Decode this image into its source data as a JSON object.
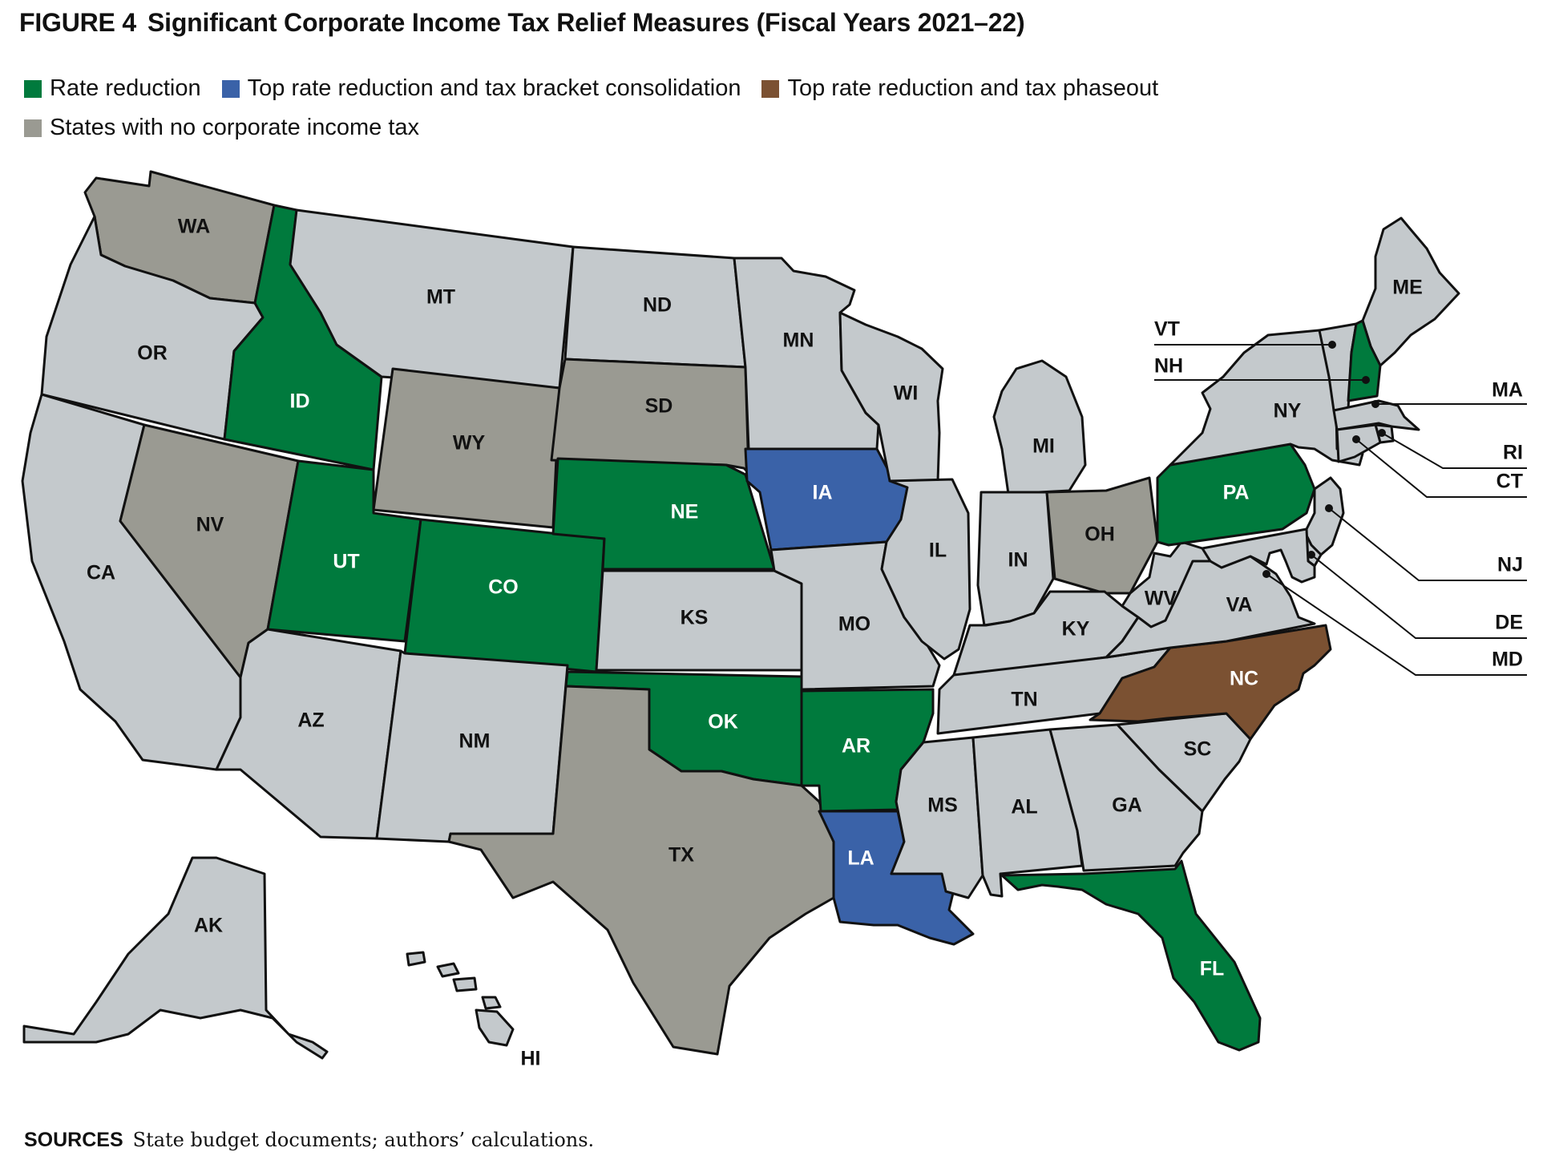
{
  "title": {
    "figure_label": "FIGURE 4",
    "text": "Significant Corporate Income Tax Relief Measures (Fiscal Years 2021–22)"
  },
  "colors": {
    "rate_reduction": "#007a3d",
    "bracket_consolidation": "#3a62a8",
    "tax_phaseout": "#7b5132",
    "no_tax": "#9a9a92",
    "other": "#c4c9cc",
    "outline": "#111111",
    "label_dark": "#111111",
    "label_light": "#ffffff"
  },
  "legend": [
    {
      "key": "rate_reduction",
      "label": "Rate reduction"
    },
    {
      "key": "bracket_consolidation",
      "label": "Top rate reduction and tax bracket consolidation"
    },
    {
      "key": "tax_phaseout",
      "label": "Top rate reduction and tax phaseout"
    },
    {
      "key": "no_tax",
      "label": "States with no corporate income tax"
    }
  ],
  "states": [
    {
      "abbr": "WA",
      "category": "no_tax"
    },
    {
      "abbr": "OR",
      "category": "other"
    },
    {
      "abbr": "CA",
      "category": "other"
    },
    {
      "abbr": "NV",
      "category": "no_tax"
    },
    {
      "abbr": "ID",
      "category": "rate_reduction"
    },
    {
      "abbr": "MT",
      "category": "other"
    },
    {
      "abbr": "WY",
      "category": "no_tax"
    },
    {
      "abbr": "UT",
      "category": "rate_reduction"
    },
    {
      "abbr": "AZ",
      "category": "other"
    },
    {
      "abbr": "CO",
      "category": "rate_reduction"
    },
    {
      "abbr": "NM",
      "category": "other"
    },
    {
      "abbr": "ND",
      "category": "other"
    },
    {
      "abbr": "SD",
      "category": "no_tax"
    },
    {
      "abbr": "NE",
      "category": "rate_reduction"
    },
    {
      "abbr": "KS",
      "category": "other"
    },
    {
      "abbr": "OK",
      "category": "rate_reduction"
    },
    {
      "abbr": "TX",
      "category": "no_tax"
    },
    {
      "abbr": "MN",
      "category": "other"
    },
    {
      "abbr": "IA",
      "category": "bracket_consolidation"
    },
    {
      "abbr": "MO",
      "category": "other"
    },
    {
      "abbr": "AR",
      "category": "rate_reduction"
    },
    {
      "abbr": "LA",
      "category": "bracket_consolidation"
    },
    {
      "abbr": "WI",
      "category": "other"
    },
    {
      "abbr": "IL",
      "category": "other"
    },
    {
      "abbr": "MI",
      "category": "other"
    },
    {
      "abbr": "IN",
      "category": "other"
    },
    {
      "abbr": "OH",
      "category": "no_tax"
    },
    {
      "abbr": "KY",
      "category": "other"
    },
    {
      "abbr": "TN",
      "category": "other"
    },
    {
      "abbr": "MS",
      "category": "other"
    },
    {
      "abbr": "AL",
      "category": "other"
    },
    {
      "abbr": "GA",
      "category": "other"
    },
    {
      "abbr": "FL",
      "category": "rate_reduction"
    },
    {
      "abbr": "SC",
      "category": "other"
    },
    {
      "abbr": "NC",
      "category": "tax_phaseout"
    },
    {
      "abbr": "VA",
      "category": "other"
    },
    {
      "abbr": "WV",
      "category": "other"
    },
    {
      "abbr": "PA",
      "category": "rate_reduction"
    },
    {
      "abbr": "NY",
      "category": "other"
    },
    {
      "abbr": "ME",
      "category": "other"
    },
    {
      "abbr": "VT",
      "category": "other"
    },
    {
      "abbr": "NH",
      "category": "rate_reduction"
    },
    {
      "abbr": "MA",
      "category": "other"
    },
    {
      "abbr": "RI",
      "category": "other"
    },
    {
      "abbr": "CT",
      "category": "other"
    },
    {
      "abbr": "NJ",
      "category": "other"
    },
    {
      "abbr": "DE",
      "category": "other"
    },
    {
      "abbr": "MD",
      "category": "other"
    },
    {
      "abbr": "AK",
      "category": "other"
    },
    {
      "abbr": "HI",
      "category": "other"
    }
  ],
  "sources": {
    "label": "SOURCES",
    "text": "State budget documents; authors’ calculations."
  }
}
